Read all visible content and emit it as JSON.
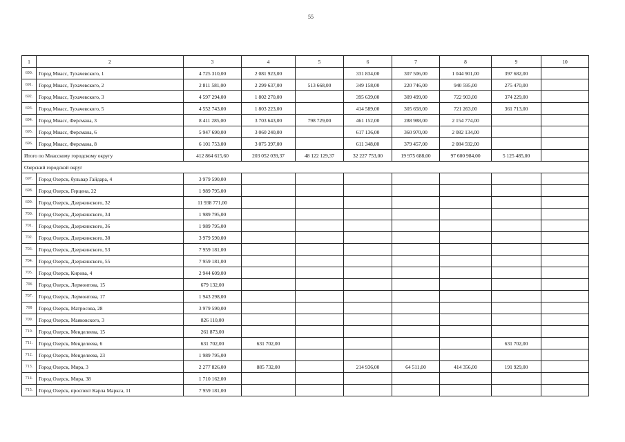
{
  "page_number": "55",
  "header": [
    "1",
    "2",
    "3",
    "4",
    "5",
    "6",
    "7",
    "8",
    "9",
    "10"
  ],
  "rows_miass": [
    {
      "num": "690.",
      "name": "Город Миасс, Тухачевского, 1",
      "values": [
        "4 725 310,00",
        "2 081 923,00",
        "",
        "331 834,00",
        "307 506,00",
        "1 044 901,00",
        "397 682,00",
        ""
      ]
    },
    {
      "num": "691.",
      "name": "Город Миасс, Тухачевского, 2",
      "values": [
        "2 811 581,00",
        "2 299 637,00",
        "513 668,00",
        "349 158,00",
        "220 746,00",
        "940 595,00",
        "275 470,00",
        ""
      ]
    },
    {
      "num": "692.",
      "name": "Город Миасс, Тухачевского, 3",
      "values": [
        "4 597 294,00",
        "1 802 270,00",
        "",
        "395 639,00",
        "309 499,00",
        "722 903,00",
        "374 229,00",
        ""
      ]
    },
    {
      "num": "693.",
      "name": "Город Миасс, Тухачевского, 5",
      "values": [
        "4 552 743,00",
        "1 803 223,00",
        "",
        "414 589,00",
        "305 658,00",
        "721 263,00",
        "361 713,00",
        ""
      ]
    },
    {
      "num": "694.",
      "name": "Город Миасс, Ферсмана, 3",
      "values": [
        "8 411 285,00",
        "3 703 643,00",
        "798 729,00",
        "461 152,00",
        "288 988,00",
        "2 154 774,00",
        "",
        ""
      ]
    },
    {
      "num": "695.",
      "name": "Город Миасс, Ферсмана, 6",
      "values": [
        "5 947 690,00",
        "3 060 240,00",
        "",
        "617 136,00",
        "360 970,00",
        "2 082 134,00",
        "",
        ""
      ]
    },
    {
      "num": "696.",
      "name": "Город Миасс, Ферсмана, 8",
      "values": [
        "6 101 753,00",
        "3 075 397,00",
        "",
        "611 348,00",
        "379 457,00",
        "2 084 592,00",
        "",
        ""
      ]
    }
  ],
  "total_miass": {
    "label": "Итого по Миасскому городскому округу",
    "values": [
      "412 864 615,60",
      "203 052 039,37",
      "48 122 129,37",
      "32 227 753,00",
      "19 975 688,00",
      "97 600 984,00",
      "5 125 485,00",
      ""
    ]
  },
  "section_ozersk": "Озерский городской округ",
  "rows_ozersk": [
    {
      "num": "697.",
      "name": "Город Озерск, бульвар Гайдара, 4",
      "values": [
        "3 979 590,00",
        "",
        "",
        "",
        "",
        "",
        "",
        ""
      ]
    },
    {
      "num": "698.",
      "name": "Город Озерск, Герцена, 22",
      "values": [
        "1 989 795,00",
        "",
        "",
        "",
        "",
        "",
        "",
        ""
      ]
    },
    {
      "num": "699.",
      "name": "Город Озерск, Дзержинского, 32",
      "values": [
        "11 938 771,00",
        "",
        "",
        "",
        "",
        "",
        "",
        ""
      ]
    },
    {
      "num": "700.",
      "name": "Город Озерск, Дзержинского, 34",
      "values": [
        "1 989 795,00",
        "",
        "",
        "",
        "",
        "",
        "",
        ""
      ]
    },
    {
      "num": "701.",
      "name": "Город Озерск, Дзержинского, 36",
      "values": [
        "1 989 795,00",
        "",
        "",
        "",
        "",
        "",
        "",
        ""
      ]
    },
    {
      "num": "702.",
      "name": "Город Озерск, Дзержинского, 38",
      "values": [
        "3 979 590,00",
        "",
        "",
        "",
        "",
        "",
        "",
        ""
      ]
    },
    {
      "num": "703.",
      "name": "Город Озерск, Дзержинского, 53",
      "values": [
        "7 959 181,00",
        "",
        "",
        "",
        "",
        "",
        "",
        ""
      ]
    },
    {
      "num": "704.",
      "name": "Город Озерск, Дзержинского, 55",
      "values": [
        "7 959 181,00",
        "",
        "",
        "",
        "",
        "",
        "",
        ""
      ]
    },
    {
      "num": "705.",
      "name": "Город Озерск, Кирова, 4",
      "values": [
        "2 944 609,00",
        "",
        "",
        "",
        "",
        "",
        "",
        ""
      ]
    },
    {
      "num": "706",
      "name": "Город Озерск, Лермонтова, 15",
      "values": [
        "679 132,00",
        "",
        "",
        "",
        "",
        "",
        "",
        ""
      ]
    },
    {
      "num": "707.",
      "name": "Город Озерск, Лермонтова, 17",
      "values": [
        "1 943 298,00",
        "",
        "",
        "",
        "",
        "",
        "",
        ""
      ]
    },
    {
      "num": "708",
      "name": "Город Озерск, Матросова, 28",
      "values": [
        "3 979 590,00",
        "",
        "",
        "",
        "",
        "",
        "",
        ""
      ]
    },
    {
      "num": "709.",
      "name": "Город Озерск, Маяковского, 3",
      "values": [
        "826 110,00",
        "",
        "",
        "",
        "",
        "",
        "",
        ""
      ]
    },
    {
      "num": "710.",
      "name": "Город Озерск, Менделеева, 15",
      "values": [
        "261 873,00",
        "",
        "",
        "",
        "",
        "",
        "",
        ""
      ]
    },
    {
      "num": "711.",
      "name": "Город Озерск, Менделеева, 6",
      "values": [
        "631 702,00",
        "631 702,00",
        "",
        "",
        "",
        "",
        "631 702,00",
        ""
      ]
    },
    {
      "num": "712.",
      "name": "Город Озерск, Менделеева, 23",
      "values": [
        "1 989 795,00",
        "",
        "",
        "",
        "",
        "",
        "",
        ""
      ]
    },
    {
      "num": "713.",
      "name": "Город Озерск, Мира, 3",
      "values": [
        "2 277 826,00",
        "885 732,00",
        "",
        "214 936,00",
        "64 511,00",
        "414 356,00",
        "191 929,00",
        ""
      ]
    },
    {
      "num": "714.",
      "name": "Город Озерск, Мира, 38",
      "values": [
        "1 710 162,00",
        "",
        "",
        "",
        "",
        "",
        "",
        ""
      ]
    },
    {
      "num": "715.",
      "name": "Город Озерск, проспект Карла Маркса, 11",
      "values": [
        "7 959 181,00",
        "",
        "",
        "",
        "",
        "",
        "",
        ""
      ]
    }
  ]
}
